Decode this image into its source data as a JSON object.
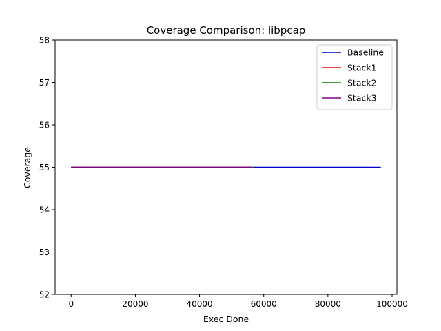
{
  "chart_data": {
    "type": "line",
    "title": "Coverage Comparison: libpcap",
    "xlabel": "Exec Done",
    "ylabel": "Coverage",
    "xlim": [
      -5000,
      101500
    ],
    "ylim": [
      52,
      58
    ],
    "xticks": [
      0,
      20000,
      40000,
      60000,
      80000,
      100000
    ],
    "yticks": [
      52,
      53,
      54,
      55,
      56,
      57,
      58
    ],
    "xtick_labels": [
      "0",
      "20000",
      "40000",
      "60000",
      "80000",
      "100000"
    ],
    "ytick_labels": [
      "52",
      "53",
      "54",
      "55",
      "56",
      "57",
      "58"
    ],
    "grid": false,
    "legend_position": "top-right",
    "series": [
      {
        "name": "Baseline",
        "color": "#0000cc",
        "x": [
          0,
          96500
        ],
        "y": [
          55,
          55
        ]
      },
      {
        "name": "Stack1",
        "color": "#ee0000",
        "x": [
          0,
          56500
        ],
        "y": [
          55,
          55
        ]
      },
      {
        "name": "Stack2",
        "color": "#008000",
        "x": [
          0,
          57000
        ],
        "y": [
          55,
          55
        ]
      },
      {
        "name": "Stack3",
        "color": "#800080",
        "x": [
          0,
          56500
        ],
        "y": [
          55,
          55
        ]
      }
    ]
  }
}
